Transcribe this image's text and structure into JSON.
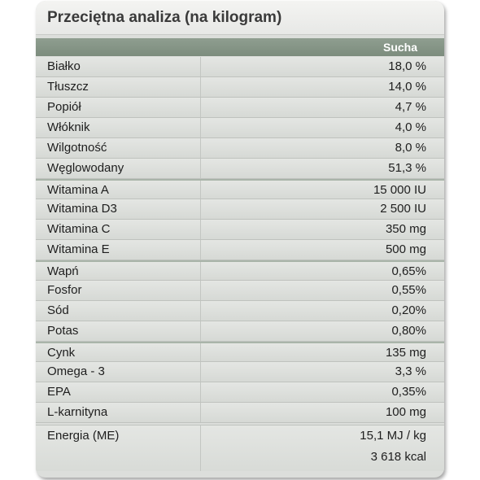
{
  "title": "Przeciętna analiza (na kilogram)",
  "header": {
    "col_name": "",
    "col_value": "Sucha"
  },
  "rows": [
    {
      "name": "Białko",
      "value": "18,0 %",
      "group_start": false
    },
    {
      "name": "Tłuszcz",
      "value": "14,0 %",
      "group_start": false
    },
    {
      "name": "Popiół",
      "value": "4,7 %",
      "group_start": false
    },
    {
      "name": "Włóknik",
      "value": "4,0 %",
      "group_start": false
    },
    {
      "name": "Wilgotność",
      "value": "8,0 %",
      "group_start": false
    },
    {
      "name": "Węglowodany",
      "value": "51,3 %",
      "group_start": false
    },
    {
      "name": "Witamina A",
      "value": "15 000 IU",
      "group_start": true
    },
    {
      "name": "Witamina D3",
      "value": "2 500 IU",
      "group_start": false
    },
    {
      "name": "Witamina C",
      "value": "350 mg",
      "group_start": false
    },
    {
      "name": "Witamina E",
      "value": "500 mg",
      "group_start": false
    },
    {
      "name": "Wapń",
      "value": "0,65%",
      "group_start": true
    },
    {
      "name": "Fosfor",
      "value": "0,55%",
      "group_start": false
    },
    {
      "name": "Sód",
      "value": "0,20%",
      "group_start": false
    },
    {
      "name": "Potas",
      "value": "0,80%",
      "group_start": false
    },
    {
      "name": "Cynk",
      "value": "135 mg",
      "group_start": true
    },
    {
      "name": "Omega - 3",
      "value": "3,3 %",
      "group_start": false
    },
    {
      "name": "EPA",
      "value": "0,35%",
      "group_start": false
    },
    {
      "name": "L-karnityna",
      "value": "100 mg",
      "group_start": false
    }
  ],
  "energy": {
    "name": "Energia (ME)",
    "value_mj": "15,1 MJ / kg",
    "value_kcal": "3 618 kcal"
  }
}
